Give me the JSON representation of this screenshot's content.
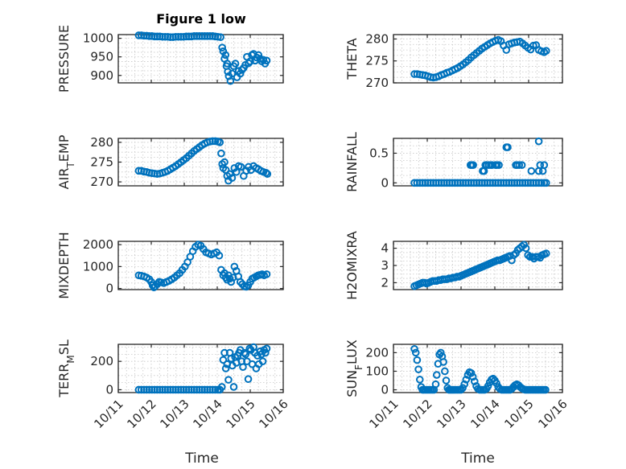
{
  "figure": {
    "title": "Figure 1 low",
    "accent": "#0072BD"
  },
  "chart_data": [
    {
      "type": "scatter",
      "ylabel": "PRESSURE",
      "title": "Figure 1 low",
      "xticks": [
        "10/11",
        "10/12",
        "10/13",
        "10/14",
        "10/15",
        "10/16"
      ],
      "xlim": [
        11,
        16
      ],
      "yticks": [
        "900",
        "950",
        "1000"
      ],
      "ytick_values": [
        900,
        950,
        1000
      ],
      "ylim": [
        880,
        1010
      ],
      "x": [
        11.62,
        11.7,
        11.78,
        11.86,
        11.94,
        12.02,
        12.1,
        12.18,
        12.26,
        12.34,
        12.42,
        12.5,
        12.58,
        12.66,
        12.74,
        12.82,
        12.9,
        12.98,
        13.06,
        13.14,
        13.22,
        13.3,
        13.38,
        13.46,
        13.54,
        13.62,
        13.7,
        13.78,
        13.86,
        13.94,
        14.02,
        14.1,
        14.15,
        14.18,
        14.22,
        14.25,
        14.28,
        14.3,
        14.32,
        14.35,
        14.4,
        14.45,
        14.5,
        14.55,
        14.6,
        14.65,
        14.7,
        14.75,
        14.8,
        14.85,
        14.9,
        14.95,
        15.0,
        15.05,
        15.1,
        15.15,
        15.2,
        15.25,
        15.3,
        15.35,
        15.4,
        15.45,
        15.5
      ],
      "y": [
        1008,
        1008,
        1007,
        1007,
        1006,
        1006,
        1005,
        1005,
        1005,
        1004,
        1004,
        1004,
        1003,
        1003,
        1004,
        1004,
        1004,
        1004,
        1005,
        1005,
        1005,
        1006,
        1006,
        1006,
        1006,
        1006,
        1006,
        1006,
        1006,
        1005,
        1004,
        1003,
        975,
        965,
        945,
        955,
        925,
        932,
        910,
        898,
        885,
        905,
        925,
        932,
        895,
        912,
        905,
        915,
        920,
        928,
        950,
        933,
        938,
        955,
        958,
        940,
        948,
        955,
        945,
        938,
        942,
        932,
        940
      ]
    },
    {
      "type": "scatter",
      "ylabel": "THETA",
      "xticks": [
        "10/11",
        "10/12",
        "10/13",
        "10/14",
        "10/15",
        "10/16"
      ],
      "xlim": [
        11,
        16
      ],
      "yticks": [
        "270",
        "275",
        "280"
      ],
      "ytick_values": [
        270,
        275,
        280
      ],
      "ylim": [
        270,
        281
      ],
      "x": [
        11.62,
        11.7,
        11.78,
        11.86,
        11.94,
        12.02,
        12.1,
        12.18,
        12.26,
        12.34,
        12.42,
        12.5,
        12.58,
        12.66,
        12.74,
        12.82,
        12.9,
        12.98,
        13.06,
        13.14,
        13.22,
        13.3,
        13.38,
        13.46,
        13.54,
        13.62,
        13.7,
        13.78,
        13.86,
        13.94,
        14.02,
        14.1,
        14.18,
        14.26,
        14.34,
        14.42,
        14.5,
        14.58,
        14.66,
        14.74,
        14.82,
        14.9,
        14.98,
        15.06,
        15.14,
        15.22,
        15.3,
        15.38,
        15.46,
        15.52
      ],
      "y": [
        272,
        272,
        271.9,
        271.8,
        271.7,
        271.5,
        271.3,
        271.2,
        271.3,
        271.5,
        271.8,
        272.0,
        272.3,
        272.5,
        272.8,
        273.1,
        273.4,
        273.8,
        274.2,
        274.7,
        275.2,
        275.8,
        276.3,
        276.8,
        277.3,
        277.8,
        278.2,
        278.6,
        279.0,
        279.3,
        279.6,
        279.8,
        279.5,
        278.5,
        277.5,
        278.8,
        279.0,
        279.2,
        279.3,
        279.4,
        279.0,
        278.5,
        278.0,
        277.6,
        278.5,
        278.6,
        277.5,
        277.2,
        277.0,
        277.3
      ]
    },
    {
      "type": "scatter",
      "ylabel": "AIR_TEMP",
      "xticks": [
        "10/11",
        "10/12",
        "10/13",
        "10/14",
        "10/15",
        "10/16"
      ],
      "xlim": [
        11,
        16
      ],
      "yticks": [
        "270",
        "275",
        "280"
      ],
      "ytick_values": [
        270,
        275,
        280
      ],
      "ylim": [
        269,
        281
      ],
      "x": [
        11.62,
        11.7,
        11.78,
        11.86,
        11.94,
        12.02,
        12.1,
        12.18,
        12.26,
        12.34,
        12.42,
        12.5,
        12.58,
        12.66,
        12.74,
        12.82,
        12.9,
        12.98,
        13.06,
        13.14,
        13.22,
        13.3,
        13.38,
        13.46,
        13.54,
        13.62,
        13.7,
        13.78,
        13.86,
        13.94,
        14.02,
        14.08,
        14.12,
        14.15,
        14.18,
        14.22,
        14.26,
        14.3,
        14.34,
        14.38,
        14.45,
        14.52,
        14.58,
        14.65,
        14.72,
        14.8,
        14.88,
        14.95,
        15.02,
        15.1,
        15.18,
        15.25,
        15.32,
        15.4,
        15.48,
        15.52
      ],
      "y": [
        272.8,
        272.8,
        272.6,
        272.5,
        272.3,
        272.2,
        272.1,
        272.0,
        272.1,
        272.3,
        272.5,
        272.8,
        273.2,
        273.6,
        274.0,
        274.5,
        275.0,
        275.5,
        276.0,
        276.6,
        277.2,
        277.8,
        278.3,
        278.8,
        279.3,
        279.7,
        280.0,
        280.2,
        280.3,
        280.3,
        280.2,
        280.0,
        277.2,
        274.5,
        273.5,
        275.0,
        273.0,
        271.5,
        270.3,
        272.0,
        271.0,
        273.5,
        272.5,
        274.0,
        273.8,
        271.5,
        272.8,
        273.8,
        273.0,
        274.0,
        273.5,
        273.2,
        272.8,
        272.5,
        272.3,
        272.0
      ]
    },
    {
      "type": "scatter",
      "ylabel": "RAINFALL",
      "xticks": [
        "10/11",
        "10/12",
        "10/13",
        "10/14",
        "10/15",
        "10/16"
      ],
      "xlim": [
        11,
        16
      ],
      "yticks": [
        "0",
        "0.5"
      ],
      "ytick_values": [
        0,
        0.5
      ],
      "ylim": [
        -0.05,
        0.75
      ],
      "x": [
        11.62,
        11.7,
        11.78,
        11.86,
        11.94,
        12.02,
        12.1,
        12.18,
        12.26,
        12.34,
        12.42,
        12.5,
        12.58,
        12.66,
        12.74,
        12.82,
        12.9,
        12.98,
        13.06,
        13.14,
        13.22,
        13.3,
        13.38,
        13.46,
        13.54,
        13.62,
        13.7,
        13.78,
        13.86,
        13.94,
        14.02,
        14.1,
        14.18,
        14.26,
        14.34,
        14.42,
        14.5,
        14.58,
        14.66,
        14.74,
        14.82,
        14.9,
        14.98,
        15.06,
        15.14,
        15.22,
        15.3,
        15.38,
        15.46,
        15.52,
        13.28,
        13.32,
        13.36,
        13.64,
        13.68,
        13.72,
        13.76,
        13.82,
        13.88,
        13.92,
        14.02,
        14.06,
        14.12,
        14.34,
        14.38,
        14.62,
        14.66,
        14.72,
        14.8,
        15.08,
        15.34,
        15.42,
        15.3,
        15.3,
        15.46
      ],
      "y": [
        0,
        0,
        0,
        0,
        0,
        0,
        0,
        0,
        0,
        0,
        0,
        0,
        0,
        0,
        0,
        0,
        0,
        0,
        0,
        0,
        0,
        0,
        0,
        0,
        0,
        0,
        0,
        0,
        0,
        0,
        0,
        0,
        0,
        0,
        0,
        0,
        0,
        0,
        0,
        0,
        0,
        0,
        0,
        0,
        0,
        0,
        0,
        0,
        0,
        0,
        0.3,
        0.3,
        0.3,
        0.2,
        0.2,
        0.3,
        0.3,
        0.3,
        0.3,
        0.3,
        0.3,
        0.3,
        0.3,
        0.6,
        0.6,
        0.3,
        0.3,
        0.3,
        0.3,
        0.2,
        0.3,
        0.2,
        0.7,
        0.2,
        0.3
      ]
    },
    {
      "type": "scatter",
      "ylabel": "MIXDEPTH",
      "xticks": [
        "10/11",
        "10/12",
        "10/13",
        "10/14",
        "10/15",
        "10/16"
      ],
      "xlim": [
        11,
        16
      ],
      "yticks": [
        "0",
        "1000",
        "2000"
      ],
      "ytick_values": [
        0,
        1000,
        2000
      ],
      "ylim": [
        -50,
        2150
      ],
      "x": [
        11.62,
        11.7,
        11.78,
        11.86,
        11.94,
        12.0,
        12.04,
        12.08,
        12.12,
        12.18,
        12.24,
        12.3,
        12.38,
        12.46,
        12.54,
        12.62,
        12.7,
        12.78,
        12.86,
        12.94,
        13.02,
        13.1,
        13.18,
        13.26,
        13.34,
        13.42,
        13.5,
        13.58,
        13.66,
        13.74,
        13.82,
        13.9,
        13.98,
        14.06,
        14.12,
        14.18,
        14.22,
        14.26,
        14.3,
        14.34,
        14.38,
        14.42,
        14.48,
        14.52,
        14.58,
        14.64,
        14.7,
        14.76,
        14.82,
        14.88,
        14.94,
        15.0,
        15.06,
        15.12,
        15.18,
        15.24,
        15.3,
        15.36,
        15.42,
        15.5
      ],
      "y": [
        600,
        580,
        550,
        500,
        420,
        300,
        150,
        50,
        100,
        200,
        300,
        280,
        250,
        300,
        350,
        420,
        500,
        600,
        700,
        850,
        1000,
        1200,
        1450,
        1700,
        1900,
        2000,
        1950,
        1800,
        1650,
        1600,
        1550,
        1600,
        1650,
        1500,
        850,
        600,
        700,
        500,
        400,
        600,
        450,
        300,
        500,
        1000,
        800,
        550,
        300,
        200,
        100,
        80,
        150,
        300,
        450,
        500,
        550,
        600,
        620,
        650,
        600,
        650
      ]
    },
    {
      "type": "scatter",
      "ylabel": "H2OMIXRA",
      "xticks": [
        "10/11",
        "10/12",
        "10/13",
        "10/14",
        "10/15",
        "10/16"
      ],
      "xlim": [
        11,
        16
      ],
      "yticks": [
        "2",
        "3",
        "4"
      ],
      "ytick_values": [
        2,
        3,
        4
      ],
      "ylim": [
        1.6,
        4.4
      ],
      "x": [
        11.62,
        11.68,
        11.74,
        11.8,
        11.86,
        11.92,
        11.98,
        12.04,
        12.1,
        12.16,
        12.22,
        12.28,
        12.34,
        12.4,
        12.46,
        12.52,
        12.58,
        12.64,
        12.7,
        12.76,
        12.82,
        12.88,
        12.94,
        13.0,
        13.06,
        13.12,
        13.18,
        13.24,
        13.3,
        13.36,
        13.42,
        13.48,
        13.54,
        13.6,
        13.66,
        13.72,
        13.78,
        13.84,
        13.9,
        13.96,
        14.02,
        14.08,
        14.14,
        14.2,
        14.26,
        14.32,
        14.38,
        14.44,
        14.5,
        14.56,
        14.62,
        14.68,
        14.74,
        14.8,
        14.86,
        14.92,
        14.98,
        15.04,
        15.1,
        15.16,
        15.22,
        15.28,
        15.34,
        15.4,
        15.46,
        15.52
      ],
      "y": [
        1.8,
        1.85,
        1.9,
        1.95,
        2.0,
        2.0,
        1.95,
        2.0,
        2.05,
        2.1,
        2.1,
        2.1,
        2.15,
        2.15,
        2.2,
        2.2,
        2.2,
        2.25,
        2.25,
        2.3,
        2.3,
        2.35,
        2.35,
        2.4,
        2.45,
        2.5,
        2.55,
        2.6,
        2.65,
        2.7,
        2.75,
        2.8,
        2.85,
        2.9,
        2.95,
        3.0,
        3.05,
        3.1,
        3.15,
        3.2,
        3.25,
        3.3,
        3.3,
        3.35,
        3.4,
        3.45,
        3.5,
        3.55,
        3.3,
        3.6,
        3.7,
        3.9,
        4.0,
        4.1,
        4.2,
        4.0,
        3.6,
        3.5,
        3.5,
        3.4,
        3.5,
        3.5,
        3.45,
        3.6,
        3.65,
        3.7
      ]
    },
    {
      "type": "scatter",
      "ylabel": "TERR_MSL",
      "xticks": [
        "10/11",
        "10/12",
        "10/13",
        "10/14",
        "10/15",
        "10/16"
      ],
      "xlim": [
        11,
        16
      ],
      "yticks": [
        "0",
        "200"
      ],
      "ytick_values": [
        0,
        200
      ],
      "ylim": [
        -20,
        320
      ],
      "x": [
        11.62,
        11.7,
        11.78,
        11.86,
        11.94,
        12.02,
        12.1,
        12.18,
        12.26,
        12.34,
        12.42,
        12.5,
        12.58,
        12.66,
        12.74,
        12.82,
        12.9,
        12.98,
        13.06,
        13.14,
        13.22,
        13.3,
        13.38,
        13.46,
        13.54,
        13.62,
        13.7,
        13.78,
        13.86,
        13.94,
        14.02,
        14.08,
        14.14,
        14.18,
        14.22,
        14.26,
        14.3,
        14.34,
        14.38,
        14.42,
        14.46,
        14.5,
        14.54,
        14.58,
        14.62,
        14.66,
        14.7,
        14.74,
        14.78,
        14.82,
        14.86,
        14.9,
        14.94,
        14.98,
        15.02,
        15.06,
        15.1,
        15.14,
        15.18,
        15.22,
        15.26,
        15.3,
        15.34,
        15.38,
        15.42,
        15.46,
        15.5
      ],
      "y": [
        0,
        0,
        0,
        0,
        0,
        0,
        0,
        0,
        0,
        0,
        0,
        0,
        0,
        0,
        0,
        0,
        0,
        0,
        0,
        0,
        0,
        0,
        0,
        0,
        0,
        0,
        0,
        0,
        0,
        0,
        0,
        0,
        20,
        210,
        260,
        150,
        180,
        70,
        260,
        220,
        170,
        20,
        230,
        190,
        240,
        260,
        280,
        200,
        160,
        260,
        250,
        200,
        75,
        290,
        280,
        180,
        300,
        260,
        150,
        240,
        180,
        270,
        250,
        200,
        280,
        260,
        290
      ]
    },
    {
      "type": "scatter",
      "ylabel": "SUN_FLUX",
      "xticks": [
        "10/11",
        "10/12",
        "10/13",
        "10/14",
        "10/15",
        "10/16"
      ],
      "xlim": [
        11,
        16
      ],
      "yticks": [
        "0",
        "100",
        "200"
      ],
      "ytick_values": [
        0,
        100,
        200
      ],
      "ylim": [
        -15,
        245
      ],
      "x": [
        11.62,
        11.66,
        11.7,
        11.74,
        11.78,
        11.82,
        11.86,
        11.9,
        11.95,
        12.0,
        12.05,
        12.1,
        12.15,
        12.2,
        12.25,
        12.28,
        12.32,
        12.36,
        12.4,
        12.44,
        12.48,
        12.52,
        12.56,
        12.6,
        12.64,
        12.68,
        12.72,
        12.76,
        12.8,
        12.85,
        12.9,
        12.95,
        13.0,
        13.05,
        13.1,
        13.15,
        13.2,
        13.25,
        13.3,
        13.35,
        13.4,
        13.45,
        13.5,
        13.55,
        13.6,
        13.65,
        13.7,
        13.75,
        13.8,
        13.85,
        13.9,
        13.95,
        14.0,
        14.05,
        14.1,
        14.15,
        14.2,
        14.25,
        14.3,
        14.35,
        14.4,
        14.45,
        14.5,
        14.55,
        14.6,
        14.65,
        14.7,
        14.75,
        14.8,
        14.85,
        14.9,
        14.95,
        15.0,
        15.05,
        15.1,
        15.15,
        15.2,
        15.25,
        15.3,
        15.35,
        15.4,
        15.45,
        15.5
      ],
      "y": [
        220,
        200,
        160,
        110,
        55,
        15,
        0,
        0,
        0,
        0,
        0,
        0,
        0,
        0,
        30,
        80,
        140,
        190,
        200,
        180,
        150,
        100,
        50,
        10,
        0,
        0,
        0,
        0,
        0,
        0,
        0,
        0,
        0,
        10,
        30,
        55,
        80,
        95,
        90,
        70,
        45,
        20,
        5,
        0,
        0,
        0,
        0,
        5,
        20,
        40,
        55,
        60,
        50,
        35,
        15,
        5,
        0,
        0,
        0,
        0,
        0,
        0,
        5,
        15,
        25,
        30,
        25,
        15,
        8,
        3,
        0,
        0,
        0,
        0,
        0,
        0,
        0,
        0,
        0,
        0,
        0,
        0,
        0
      ]
    }
  ],
  "axes_labels": {
    "ylabels": [
      {
        "base": "PRESSURE",
        "sub": "",
        "rest": ""
      },
      {
        "base": "THETA",
        "sub": "",
        "rest": ""
      },
      {
        "base": "AIR",
        "sub": "T",
        "rest": "EMP"
      },
      {
        "base": "RAINFALL",
        "sub": "",
        "rest": ""
      },
      {
        "base": "MIXDEPTH",
        "sub": "",
        "rest": ""
      },
      {
        "base": "H2OMIXRA",
        "sub": "",
        "rest": ""
      },
      {
        "base": "TERR",
        "sub": "M",
        "rest": "SL"
      },
      {
        "base": "SUN",
        "sub": "F",
        "rest": "LUX"
      }
    ],
    "xlabel_left": "Time",
    "xlabel_right": "Time"
  }
}
